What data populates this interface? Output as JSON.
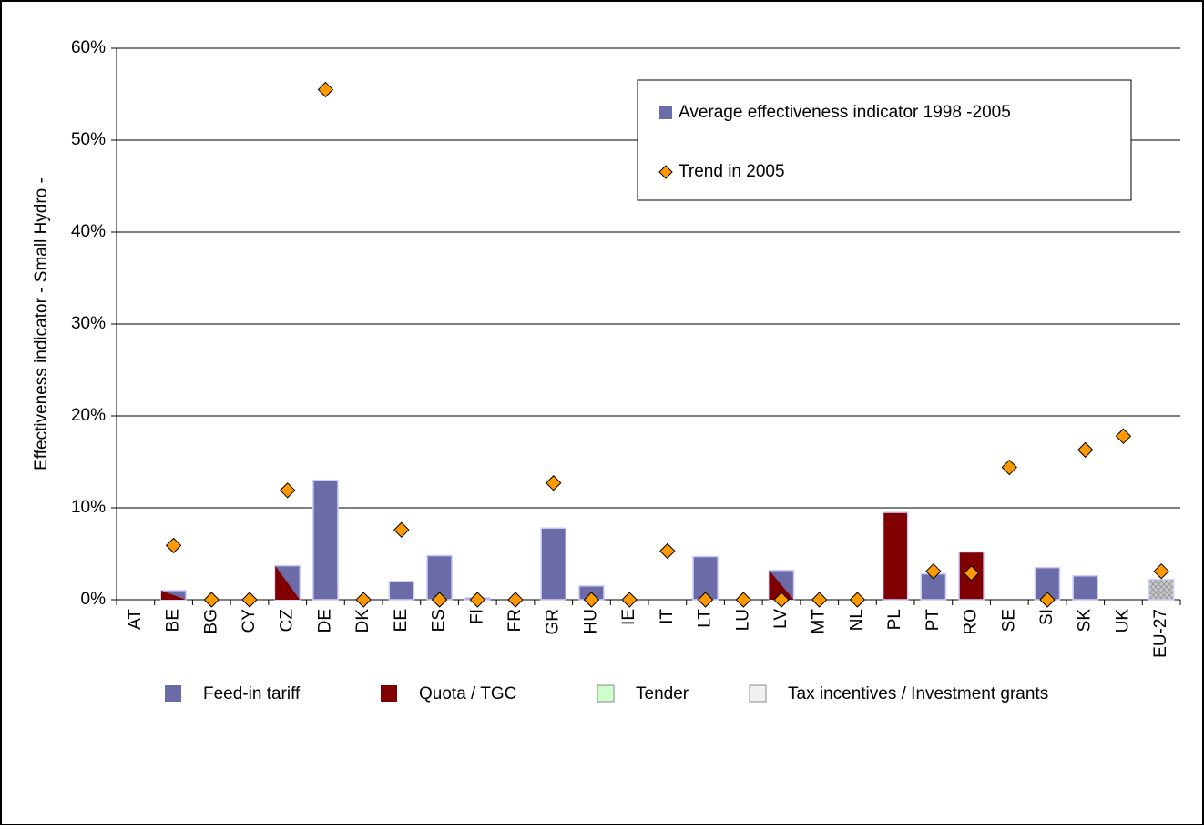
{
  "chart_data": {
    "type": "bar",
    "y_label": "Effectiveness indicator - Small Hydro -",
    "categories": [
      "AT",
      "BE",
      "BG",
      "CY",
      "CZ",
      "DE",
      "DK",
      "EE",
      "ES",
      "FI",
      "FR",
      "GR",
      "HU",
      "IE",
      "IT",
      "LT",
      "LU",
      "LV",
      "MT",
      "NL",
      "PL",
      "PT",
      "RO",
      "SE",
      "SI",
      "SK",
      "UK",
      "EU-27"
    ],
    "series": [
      {
        "name": "Average effectiveness indicator 1998 -2005",
        "type": "bar",
        "color": "#6b6ba8",
        "values": [
          0,
          1.0,
          0,
          0,
          3.7,
          13.0,
          0,
          2.0,
          4.8,
          0.2,
          0,
          7.8,
          1.5,
          0,
          0,
          4.7,
          0,
          3.2,
          0,
          0,
          9.5,
          2.8,
          5.2,
          0,
          3.5,
          2.6,
          0,
          2.2
        ],
        "bar_colors": [
          [
            "#6b6ba8"
          ],
          [
            "#6b6ba8",
            "#800000"
          ],
          [
            "#6b6ba8"
          ],
          [
            "#6b6ba8"
          ],
          [
            "#6b6ba8",
            "#800000"
          ],
          [
            "#6b6ba8"
          ],
          [
            "#6b6ba8"
          ],
          [
            "#6b6ba8"
          ],
          [
            "#6b6ba8"
          ],
          [
            "#6b6ba8"
          ],
          [
            "#6b6ba8"
          ],
          [
            "#6b6ba8"
          ],
          [
            "#6b6ba8"
          ],
          [
            "#6b6ba8"
          ],
          [
            "#6b6ba8"
          ],
          [
            "#6b6ba8"
          ],
          [
            "#6b6ba8"
          ],
          [
            "#6b6ba8",
            "#800000"
          ],
          [
            "#6b6ba8"
          ],
          [
            "#6b6ba8"
          ],
          [
            "#800000"
          ],
          [
            "#6b6ba8"
          ],
          [
            "#800000"
          ],
          [
            "#6b6ba8"
          ],
          [
            "#6b6ba8"
          ],
          [
            "#6b6ba8"
          ],
          [
            "#6b6ba8"
          ],
          [
            "url(#hatch)"
          ]
        ]
      },
      {
        "name": "Trend in 2005",
        "type": "scatter",
        "color": "#ff9900",
        "values": [
          null,
          5.9,
          0,
          0,
          11.9,
          55.5,
          0,
          7.6,
          0,
          0,
          0,
          12.7,
          0,
          0,
          5.3,
          0,
          0,
          0,
          0,
          0,
          null,
          3.1,
          2.9,
          14.4,
          0,
          16.3,
          17.8,
          3.1
        ]
      }
    ],
    "instruments": [
      {
        "name": "Feed-in tariff",
        "color": "#6b6ba8"
      },
      {
        "name": "Quota / TGC",
        "color": "#800000"
      },
      {
        "name": "Tender",
        "color": "#ccffcc"
      },
      {
        "name": "Tax incentives / Investment grants",
        "color": "#f0f0f0"
      }
    ],
    "ylim": [
      0,
      60
    ],
    "yticks": [
      {
        "value": 0,
        "label": "0%"
      },
      {
        "value": 10,
        "label": "10%"
      },
      {
        "value": 20,
        "label": "20%"
      },
      {
        "value": 30,
        "label": "30%"
      },
      {
        "value": 40,
        "label": "40%"
      },
      {
        "value": 50,
        "label": "50%"
      },
      {
        "value": 60,
        "label": "60%"
      }
    ],
    "grid": true
  }
}
